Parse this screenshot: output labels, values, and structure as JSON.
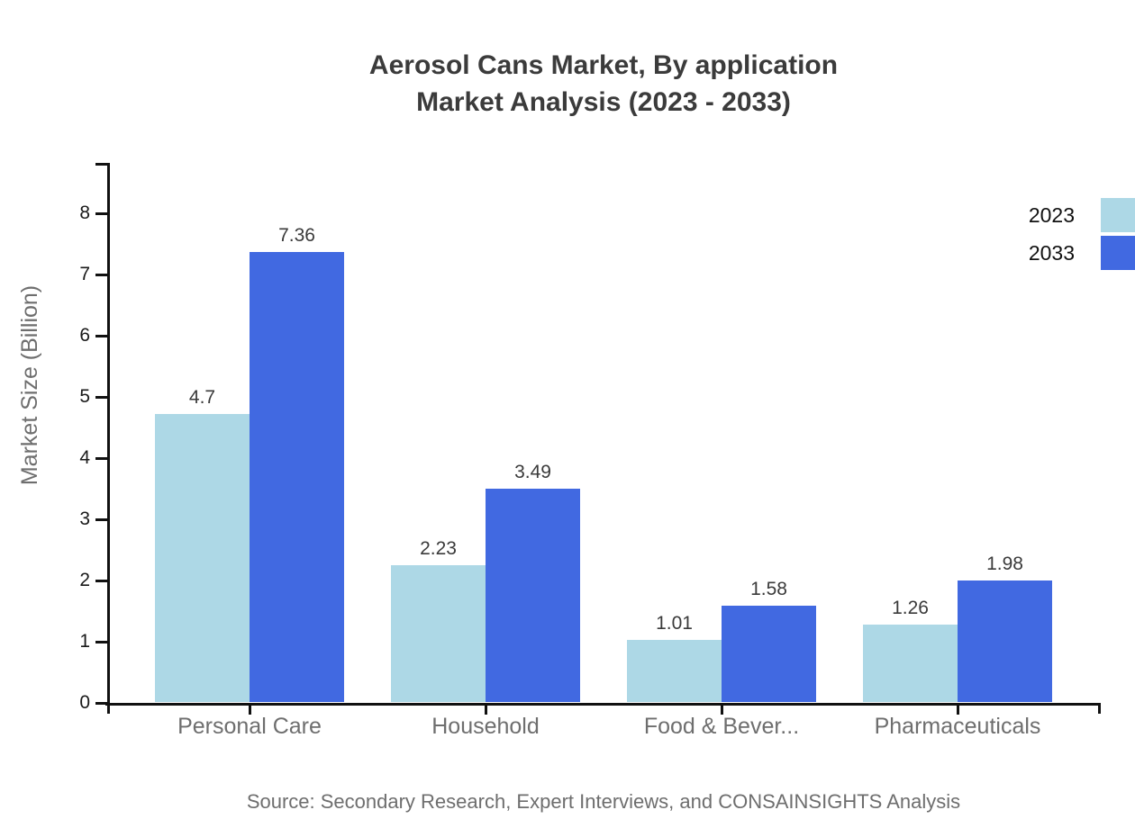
{
  "title": {
    "line1": "Aerosol Cans Market, By application",
    "line2": "Market Analysis (2023 - 2033)"
  },
  "source": "Source: Secondary Research, Expert Interviews, and CONSAINSIGHTS Analysis",
  "legend": {
    "items": [
      {
        "label": "2023",
        "color": "#ADD8E6"
      },
      {
        "label": "2033",
        "color": "#4169E1"
      }
    ],
    "position": "top-right"
  },
  "chart_data": {
    "type": "bar",
    "title": "Aerosol Cans Market, By application — Market Analysis (2023 - 2033)",
    "categories": [
      "Personal Care",
      "Household",
      "Food & Bever...",
      "Pharmaceuticals"
    ],
    "series": [
      {
        "name": "2023",
        "color": "#ADD8E6",
        "values": [
          4.7,
          2.23,
          1.01,
          1.26
        ]
      },
      {
        "name": "2033",
        "color": "#4169E1",
        "values": [
          7.36,
          3.49,
          1.58,
          1.98
        ]
      }
    ],
    "value_labels": [
      [
        "4.7",
        "7.36"
      ],
      [
        "2.23",
        "3.49"
      ],
      [
        "1.01",
        "1.58"
      ],
      [
        "1.26",
        "1.98"
      ]
    ],
    "xlabel": "",
    "ylabel": "Market Size (Billion)",
    "ylim": [
      0,
      8.8
    ],
    "yticks": [
      0,
      1,
      2,
      3,
      4,
      5,
      6,
      7,
      8
    ],
    "grid": false,
    "legend_position": "top-right"
  }
}
